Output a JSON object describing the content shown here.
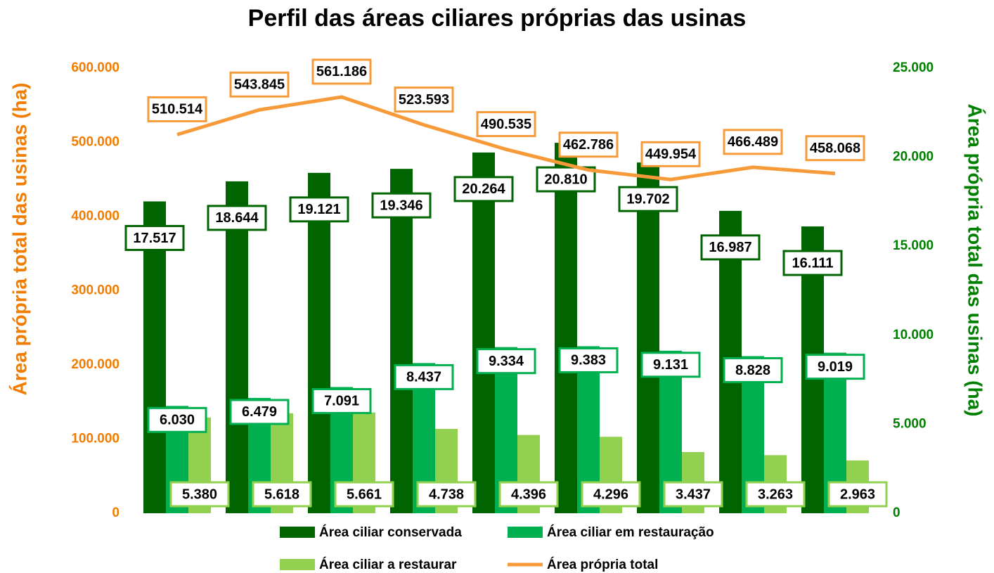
{
  "chart_data": {
    "type": "bar",
    "title": "Perfil das áreas ciliares próprias das usinas",
    "ylabel": "Área própria total das usinas (ha)",
    "y2label": "Área própria total das usinas (ha)",
    "ylim": [
      0,
      600000
    ],
    "yticks": [
      0,
      {
        "value": 100000,
        "label": "100.000"
      },
      {
        "value": 200000,
        "label": "200.000"
      },
      {
        "value": 300000,
        "label": "300.000"
      },
      {
        "value": 400000,
        "label": "400.000"
      },
      {
        "value": 500000,
        "label": "500.000"
      },
      {
        "value": 600000,
        "label": "600.000"
      }
    ],
    "y2lim": [
      0,
      25000
    ],
    "y2ticks": [
      0,
      {
        "value": 5000,
        "label": "5.000"
      },
      {
        "value": 10000,
        "label": "10.000"
      },
      {
        "value": 15000,
        "label": "15.000"
      },
      {
        "value": 20000,
        "label": "20.000"
      },
      {
        "value": 25000,
        "label": "25.000"
      }
    ],
    "legend": "bottom",
    "series": [
      {
        "name": "Área ciliar conservada",
        "color": "#006400",
        "axis": "y2",
        "values": [
          17517,
          18644,
          19121,
          19346,
          20264,
          20810,
          19702,
          16987,
          16111
        ],
        "value_labels": [
          "17.517",
          "18.644",
          "19.121",
          "19.346",
          "20.264",
          "20.810",
          "19.702",
          "16.987",
          "16.111"
        ]
      },
      {
        "name": "Área ciliar em restauração",
        "color": "#00b050",
        "axis": "y2",
        "values": [
          6030,
          6479,
          7091,
          8437,
          9334,
          9383,
          9131,
          8828,
          9019
        ],
        "value_labels": [
          "6.030",
          "6.479",
          "7.091",
          "8.437",
          "9.334",
          "9.383",
          "9.131",
          "8.828",
          "9.019"
        ]
      },
      {
        "name": "Área ciliar a restaurar",
        "color": "#92d050",
        "axis": "y2",
        "values": [
          5380,
          5618,
          5661,
          4738,
          4396,
          4296,
          3437,
          3263,
          2963
        ],
        "value_labels": [
          "5.380",
          "5.618",
          "5.661",
          "4.738",
          "4.396",
          "4.296",
          "3.437",
          "3.263",
          "2.963"
        ]
      },
      {
        "name": "Área própria total",
        "color": "#f79a3a",
        "type": "line",
        "values": [
          510514,
          543845,
          561186,
          523593,
          490535,
          462786,
          449954,
          466489,
          458068
        ],
        "value_labels": [
          "510.514",
          "543.845",
          "561.186",
          "523.593",
          "490.535",
          "462.786",
          "449.954",
          "466.489",
          "458.068"
        ]
      }
    ]
  }
}
